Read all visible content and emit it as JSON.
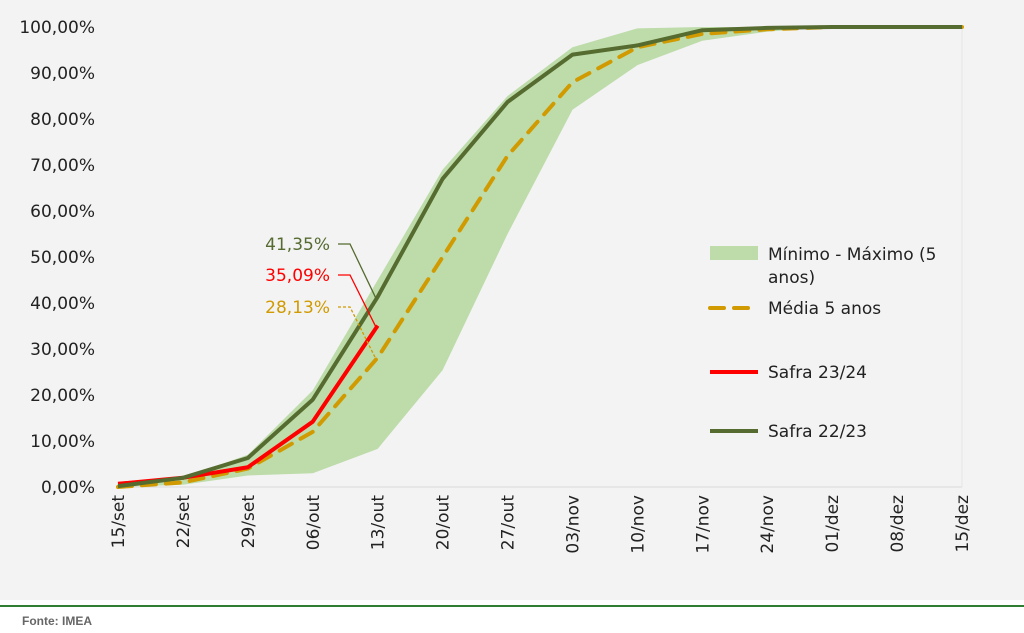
{
  "chart_data": {
    "type": "line",
    "categories": [
      "15/set",
      "22/set",
      "29/set",
      "06/out",
      "13/out",
      "20/out",
      "27/out",
      "03/nov",
      "10/nov",
      "17/nov",
      "24/nov",
      "01/dez",
      "08/dez",
      "15/dez"
    ],
    "ylim": [
      0,
      100
    ],
    "yticks": [
      "0,00%",
      "10,00%",
      "20,00%",
      "30,00%",
      "40,00%",
      "50,00%",
      "60,00%",
      "70,00%",
      "80,00%",
      "90,00%",
      "100,00%"
    ],
    "band": {
      "name": "Mínimo - Máximo (5 anos)",
      "color": "#bddcaa",
      "min": [
        0,
        0.5,
        2.5,
        3,
        8.3,
        25.4,
        55,
        82,
        91.7,
        97,
        99,
        100,
        100,
        100
      ],
      "max": [
        0.5,
        2,
        7,
        21,
        45,
        69,
        85,
        95.6,
        99.7,
        100,
        100,
        100,
        100,
        100
      ]
    },
    "series": [
      {
        "name": "Média 5 anos",
        "color": "#d09a00",
        "dash": true,
        "values": [
          0,
          1,
          4,
          12,
          28.13,
          50,
          72,
          88,
          95.6,
          98.5,
          99.5,
          100,
          100,
          100
        ]
      },
      {
        "name": "Safra 23/24",
        "color": "#ff0000",
        "values": [
          0.7,
          2,
          4.3,
          14.2,
          35.09,
          null,
          null,
          null,
          null,
          null,
          null,
          null,
          null,
          null
        ]
      },
      {
        "name": "Safra 22/23",
        "color": "#556b2f",
        "values": [
          0.2,
          2,
          6.3,
          19,
          41.35,
          67,
          83.7,
          94,
          96,
          99.3,
          99.8,
          100,
          100,
          100
        ]
      }
    ],
    "annotations": [
      {
        "text": "41,35%",
        "series": "Safra 22/23",
        "category": "13/out",
        "color": "#556b2f"
      },
      {
        "text": "35,09%",
        "series": "Safra 23/24",
        "category": "13/out",
        "color": "#ff0000"
      },
      {
        "text": "28,13%",
        "series": "Média 5 anos",
        "category": "13/out",
        "color": "#d09a00"
      }
    ],
    "legend": {
      "placement": "right",
      "items": [
        "Mínimo - Máximo (5",
        "anos)",
        "Média 5 anos",
        "Safra 23/24",
        "Safra 22/23"
      ]
    },
    "grid": false
  },
  "footer": {
    "source": "Fonte: IMEA"
  }
}
